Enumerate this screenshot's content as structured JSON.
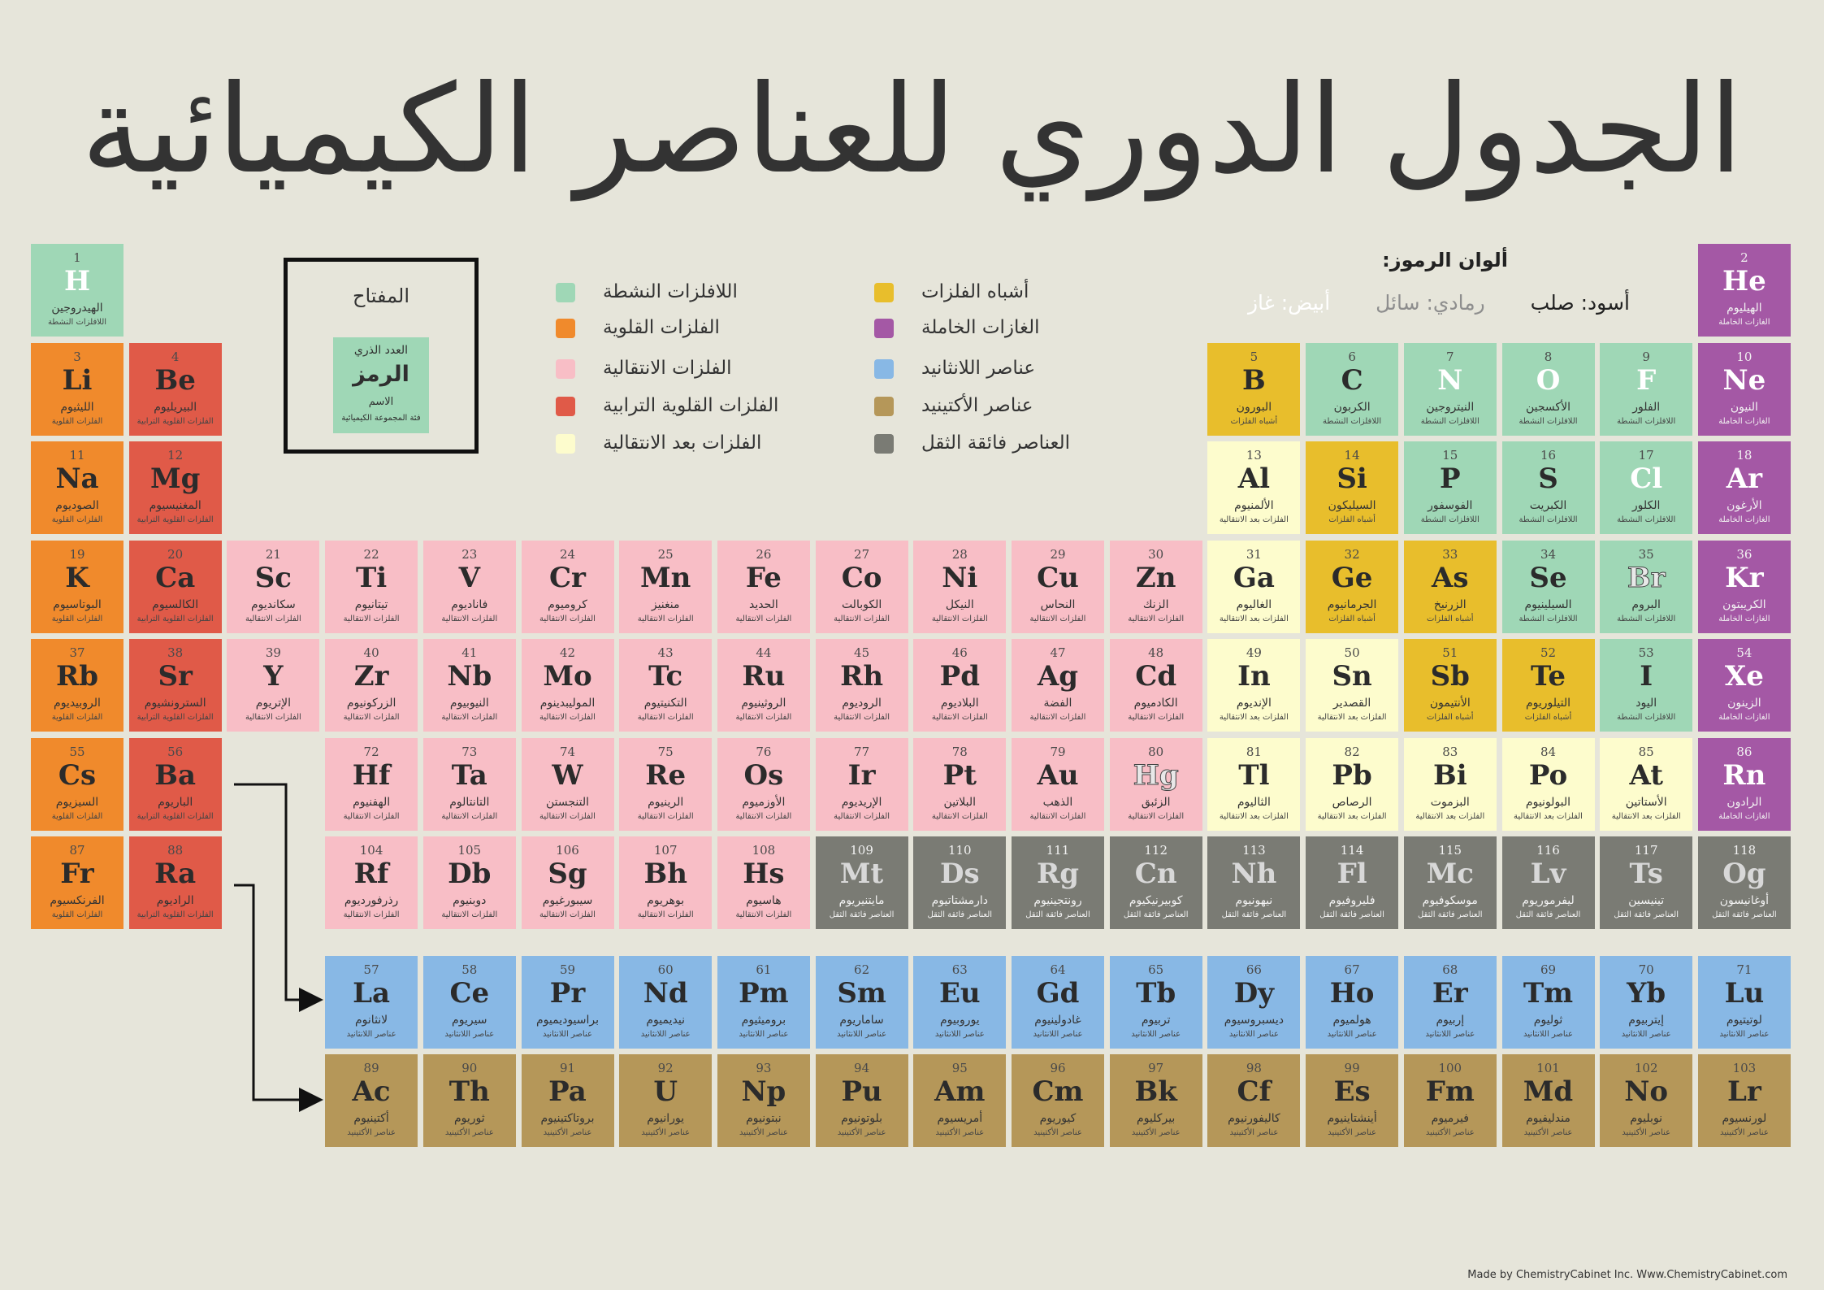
{
  "title": "الجدول الدوري للعناصر الكيميائية",
  "colors": {
    "nonmetal": "#9fd7b6",
    "alkali": "#f08a2c",
    "transition": "#f8bec6",
    "alkaline": "#e05a48",
    "post": "#fdfccd",
    "metalloid": "#e8be2c",
    "noble": "#a458a5",
    "lanthanide": "#88b8e5",
    "actinide": "#b59759",
    "super": "#7a7b74"
  },
  "category_labels": {
    "nonmetal": "اللافلزات النشطة",
    "alkali": "الفلزات القلوية",
    "transition": "الفلزات الانتقالية",
    "alkaline": "الفلزات القلوية الترابية",
    "post": "الفلزات بعد الانتقالية",
    "metalloid": "أشباه الفلزات",
    "noble": "الغازات الخاملة",
    "lanthanide": "عناصر اللانثانيد",
    "actinide": "عناصر الأكتينيد",
    "super": "العناصر فائقة الثقل"
  },
  "legend": [
    {
      "key": "nonmetal",
      "label": "اللافلزات النشطة"
    },
    {
      "key": "alkali",
      "label": "الفلزات القلوية"
    },
    {
      "key": "transition",
      "label": "الفلزات الانتقالية"
    },
    {
      "key": "alkaline",
      "label": "الفلزات القلوية الترابية"
    },
    {
      "key": "post",
      "label": "الفلزات بعد الانتقالية"
    },
    {
      "key": "metalloid",
      "label": "أشباه الفلزات"
    },
    {
      "key": "noble",
      "label": "الغازات الخاملة"
    },
    {
      "key": "lanthanide",
      "label": "عناصر اللانثانيد"
    },
    {
      "key": "actinide",
      "label": "عناصر الأكتينيد"
    },
    {
      "key": "super",
      "label": "العناصر فائقة الثقل"
    }
  ],
  "key_box": {
    "title": "المفتاح",
    "number": "العدد الذري",
    "symbol": "الرمز",
    "name": "الاسم",
    "category": "فئة المجموعة الكيميائية"
  },
  "symbol_colors": {
    "title": "ألوان الرموز:",
    "solid": "أسود: صلب",
    "liquid": "رمادي: سائل",
    "gas": "أبيض: غاز"
  },
  "credit": "Made by ChemistryCabinet Inc. Www.ChemistryCabinet.com",
  "elements": [
    {
      "n": "1",
      "s": "H",
      "name": "الهيدروجين",
      "c": "nonmetal",
      "row": 1,
      "col": 1,
      "st": "gas"
    },
    {
      "n": "2",
      "s": "He",
      "name": "الهيليوم",
      "c": "noble",
      "row": 1,
      "col": 18,
      "st": "gas"
    },
    {
      "n": "3",
      "s": "Li",
      "name": "الليثيوم",
      "c": "alkali",
      "row": 2,
      "col": 1
    },
    {
      "n": "4",
      "s": "Be",
      "name": "البيريليوم",
      "c": "alkaline",
      "row": 2,
      "col": 2
    },
    {
      "n": "5",
      "s": "B",
      "name": "البورون",
      "c": "metalloid",
      "row": 2,
      "col": 13
    },
    {
      "n": "6",
      "s": "C",
      "name": "الكربون",
      "c": "nonmetal",
      "row": 2,
      "col": 14
    },
    {
      "n": "7",
      "s": "N",
      "name": "النيتروجين",
      "c": "nonmetal",
      "row": 2,
      "col": 15,
      "st": "gas"
    },
    {
      "n": "8",
      "s": "O",
      "name": "الأكسجين",
      "c": "nonmetal",
      "row": 2,
      "col": 16,
      "st": "gas"
    },
    {
      "n": "9",
      "s": "F",
      "name": "الفلور",
      "c": "nonmetal",
      "row": 2,
      "col": 17,
      "st": "gas"
    },
    {
      "n": "10",
      "s": "Ne",
      "name": "النيون",
      "c": "noble",
      "row": 2,
      "col": 18,
      "st": "gas"
    },
    {
      "n": "11",
      "s": "Na",
      "name": "الصوديوم",
      "c": "alkali",
      "row": 3,
      "col": 1
    },
    {
      "n": "12",
      "s": "Mg",
      "name": "المغنيسيوم",
      "c": "alkaline",
      "row": 3,
      "col": 2
    },
    {
      "n": "13",
      "s": "Al",
      "name": "الألمنيوم",
      "c": "post",
      "row": 3,
      "col": 13
    },
    {
      "n": "14",
      "s": "Si",
      "name": "السيليكون",
      "c": "metalloid",
      "row": 3,
      "col": 14
    },
    {
      "n": "15",
      "s": "P",
      "name": "الفوسفور",
      "c": "nonmetal",
      "row": 3,
      "col": 15
    },
    {
      "n": "16",
      "s": "S",
      "name": "الكبريت",
      "c": "nonmetal",
      "row": 3,
      "col": 16
    },
    {
      "n": "17",
      "s": "Cl",
      "name": "الكلور",
      "c": "nonmetal",
      "row": 3,
      "col": 17,
      "st": "gas"
    },
    {
      "n": "18",
      "s": "Ar",
      "name": "الأرغون",
      "c": "noble",
      "row": 3,
      "col": 18,
      "st": "gas"
    },
    {
      "n": "19",
      "s": "K",
      "name": "البوتاسيوم",
      "c": "alkali",
      "row": 4,
      "col": 1
    },
    {
      "n": "20",
      "s": "Ca",
      "name": "الكالسيوم",
      "c": "alkaline",
      "row": 4,
      "col": 2
    },
    {
      "n": "21",
      "s": "Sc",
      "name": "سكانديوم",
      "c": "transition",
      "row": 4,
      "col": 3
    },
    {
      "n": "22",
      "s": "Ti",
      "name": "تيتانيوم",
      "c": "transition",
      "row": 4,
      "col": 4
    },
    {
      "n": "23",
      "s": "V",
      "name": "فاناديوم",
      "c": "transition",
      "row": 4,
      "col": 5
    },
    {
      "n": "24",
      "s": "Cr",
      "name": "كروميوم",
      "c": "transition",
      "row": 4,
      "col": 6
    },
    {
      "n": "25",
      "s": "Mn",
      "name": "منغنيز",
      "c": "transition",
      "row": 4,
      "col": 7
    },
    {
      "n": "26",
      "s": "Fe",
      "name": "الحديد",
      "c": "transition",
      "row": 4,
      "col": 8
    },
    {
      "n": "27",
      "s": "Co",
      "name": "الكوبالت",
      "c": "transition",
      "row": 4,
      "col": 9
    },
    {
      "n": "28",
      "s": "Ni",
      "name": "النيكل",
      "c": "transition",
      "row": 4,
      "col": 10
    },
    {
      "n": "29",
      "s": "Cu",
      "name": "النحاس",
      "c": "transition",
      "row": 4,
      "col": 11
    },
    {
      "n": "30",
      "s": "Zn",
      "name": "الزنك",
      "c": "transition",
      "row": 4,
      "col": 12
    },
    {
      "n": "31",
      "s": "Ga",
      "name": "الغاليوم",
      "c": "post",
      "row": 4,
      "col": 13
    },
    {
      "n": "32",
      "s": "Ge",
      "name": "الجرمانيوم",
      "c": "metalloid",
      "row": 4,
      "col": 14
    },
    {
      "n": "33",
      "s": "As",
      "name": "الزرنيخ",
      "c": "metalloid",
      "row": 4,
      "col": 15
    },
    {
      "n": "34",
      "s": "Se",
      "name": "السيلينيوم",
      "c": "nonmetal",
      "row": 4,
      "col": 16
    },
    {
      "n": "35",
      "s": "Br",
      "name": "البروم",
      "c": "nonmetal",
      "row": 4,
      "col": 17,
      "st": "liquid"
    },
    {
      "n": "36",
      "s": "Kr",
      "name": "الكريبتون",
      "c": "noble",
      "row": 4,
      "col": 18,
      "st": "gas"
    },
    {
      "n": "37",
      "s": "Rb",
      "name": "الروبيديوم",
      "c": "alkali",
      "row": 5,
      "col": 1
    },
    {
      "n": "38",
      "s": "Sr",
      "name": "السترونشيوم",
      "c": "alkaline",
      "row": 5,
      "col": 2
    },
    {
      "n": "39",
      "s": "Y",
      "name": "الإتريوم",
      "c": "transition",
      "row": 5,
      "col": 3
    },
    {
      "n": "40",
      "s": "Zr",
      "name": "الزركونيوم",
      "c": "transition",
      "row": 5,
      "col": 4
    },
    {
      "n": "41",
      "s": "Nb",
      "name": "النيوبيوم",
      "c": "transition",
      "row": 5,
      "col": 5
    },
    {
      "n": "42",
      "s": "Mo",
      "name": "الموليبدينوم",
      "c": "transition",
      "row": 5,
      "col": 6
    },
    {
      "n": "43",
      "s": "Tc",
      "name": "التكنيتيوم",
      "c": "transition",
      "row": 5,
      "col": 7
    },
    {
      "n": "44",
      "s": "Ru",
      "name": "الروثينيوم",
      "c": "transition",
      "row": 5,
      "col": 8
    },
    {
      "n": "45",
      "s": "Rh",
      "name": "الروديوم",
      "c": "transition",
      "row": 5,
      "col": 9
    },
    {
      "n": "46",
      "s": "Pd",
      "name": "البلاديوم",
      "c": "transition",
      "row": 5,
      "col": 10
    },
    {
      "n": "47",
      "s": "Ag",
      "name": "الفضة",
      "c": "transition",
      "row": 5,
      "col": 11
    },
    {
      "n": "48",
      "s": "Cd",
      "name": "الكادميوم",
      "c": "transition",
      "row": 5,
      "col": 12
    },
    {
      "n": "49",
      "s": "In",
      "name": "الإنديوم",
      "c": "post",
      "row": 5,
      "col": 13
    },
    {
      "n": "50",
      "s": "Sn",
      "name": "القصدير",
      "c": "post",
      "row": 5,
      "col": 14
    },
    {
      "n": "51",
      "s": "Sb",
      "name": "الأنتيمون",
      "c": "metalloid",
      "row": 5,
      "col": 15
    },
    {
      "n": "52",
      "s": "Te",
      "name": "التيلوريوم",
      "c": "metalloid",
      "row": 5,
      "col": 16
    },
    {
      "n": "53",
      "s": "I",
      "name": "اليود",
      "c": "nonmetal",
      "row": 5,
      "col": 17
    },
    {
      "n": "54",
      "s": "Xe",
      "name": "الزينون",
      "c": "noble",
      "row": 5,
      "col": 18,
      "st": "gas"
    },
    {
      "n": "55",
      "s": "Cs",
      "name": "السيزيوم",
      "c": "alkali",
      "row": 6,
      "col": 1
    },
    {
      "n": "56",
      "s": "Ba",
      "name": "الباريوم",
      "c": "alkaline",
      "row": 6,
      "col": 2
    },
    {
      "n": "72",
      "s": "Hf",
      "name": "الهفنيوم",
      "c": "transition",
      "row": 6,
      "col": 4
    },
    {
      "n": "73",
      "s": "Ta",
      "name": "التانتالوم",
      "c": "transition",
      "row": 6,
      "col": 5
    },
    {
      "n": "74",
      "s": "W",
      "name": "التنجستن",
      "c": "transition",
      "row": 6,
      "col": 6
    },
    {
      "n": "75",
      "s": "Re",
      "name": "الرينيوم",
      "c": "transition",
      "row": 6,
      "col": 7
    },
    {
      "n": "76",
      "s": "Os",
      "name": "الأوزميوم",
      "c": "transition",
      "row": 6,
      "col": 8
    },
    {
      "n": "77",
      "s": "Ir",
      "name": "الإريديوم",
      "c": "transition",
      "row": 6,
      "col": 9
    },
    {
      "n": "78",
      "s": "Pt",
      "name": "البلاتين",
      "c": "transition",
      "row": 6,
      "col": 10
    },
    {
      "n": "79",
      "s": "Au",
      "name": "الذهب",
      "c": "transition",
      "row": 6,
      "col": 11
    },
    {
      "n": "80",
      "s": "Hg",
      "name": "الزئبق",
      "c": "transition",
      "row": 6,
      "col": 12,
      "st": "liquid"
    },
    {
      "n": "81",
      "s": "Tl",
      "name": "الثاليوم",
      "c": "post",
      "row": 6,
      "col": 13
    },
    {
      "n": "82",
      "s": "Pb",
      "name": "الرصاص",
      "c": "post",
      "row": 6,
      "col": 14
    },
    {
      "n": "83",
      "s": "Bi",
      "name": "البزموت",
      "c": "post",
      "row": 6,
      "col": 15
    },
    {
      "n": "84",
      "s": "Po",
      "name": "البولونيوم",
      "c": "post",
      "row": 6,
      "col": 16
    },
    {
      "n": "85",
      "s": "At",
      "name": "الأستاتين",
      "c": "post",
      "row": 6,
      "col": 17
    },
    {
      "n": "86",
      "s": "Rn",
      "name": "الرادون",
      "c": "noble",
      "row": 6,
      "col": 18,
      "st": "gas"
    },
    {
      "n": "87",
      "s": "Fr",
      "name": "الفرنكسيوم",
      "c": "alkali",
      "row": 7,
      "col": 1
    },
    {
      "n": "88",
      "s": "Ra",
      "name": "الراديوم",
      "c": "alkaline",
      "row": 7,
      "col": 2
    },
    {
      "n": "104",
      "s": "Rf",
      "name": "رذرفورديوم",
      "c": "transition",
      "row": 7,
      "col": 4
    },
    {
      "n": "105",
      "s": "Db",
      "name": "دوبنيوم",
      "c": "transition",
      "row": 7,
      "col": 5
    },
    {
      "n": "106",
      "s": "Sg",
      "name": "سيبورغيوم",
      "c": "transition",
      "row": 7,
      "col": 6
    },
    {
      "n": "107",
      "s": "Bh",
      "name": "بوهريوم",
      "c": "transition",
      "row": 7,
      "col": 7
    },
    {
      "n": "108",
      "s": "Hs",
      "name": "هاسيوم",
      "c": "transition",
      "row": 7,
      "col": 8
    },
    {
      "n": "109",
      "s": "Mt",
      "name": "مايتنيريوم",
      "c": "super",
      "row": 7,
      "col": 9
    },
    {
      "n": "110",
      "s": "Ds",
      "name": "دارمشتاتيوم",
      "c": "super",
      "row": 7,
      "col": 10
    },
    {
      "n": "111",
      "s": "Rg",
      "name": "رونتجينيوم",
      "c": "super",
      "row": 7,
      "col": 11
    },
    {
      "n": "112",
      "s": "Cn",
      "name": "كوبيرنيكيوم",
      "c": "super",
      "row": 7,
      "col": 12
    },
    {
      "n": "113",
      "s": "Nh",
      "name": "نيهونيوم",
      "c": "super",
      "row": 7,
      "col": 13
    },
    {
      "n": "114",
      "s": "Fl",
      "name": "فليروفيوم",
      "c": "super",
      "row": 7,
      "col": 14
    },
    {
      "n": "115",
      "s": "Mc",
      "name": "موسكوفيوم",
      "c": "super",
      "row": 7,
      "col": 15
    },
    {
      "n": "116",
      "s": "Lv",
      "name": "ليفرموريوم",
      "c": "super",
      "row": 7,
      "col": 16
    },
    {
      "n": "117",
      "s": "Ts",
      "name": "تينيسين",
      "c": "super",
      "row": 7,
      "col": 17
    },
    {
      "n": "118",
      "s": "Og",
      "name": "أوغانيسون",
      "c": "super",
      "row": 7,
      "col": 18
    },
    {
      "n": "57",
      "s": "La",
      "name": "لانثانوم",
      "c": "lanthanide",
      "row": 8,
      "col": 4
    },
    {
      "n": "58",
      "s": "Ce",
      "name": "سيريوم",
      "c": "lanthanide",
      "row": 8,
      "col": 5
    },
    {
      "n": "59",
      "s": "Pr",
      "name": "براسيوديميوم",
      "c": "lanthanide",
      "row": 8,
      "col": 6
    },
    {
      "n": "60",
      "s": "Nd",
      "name": "نيديميوم",
      "c": "lanthanide",
      "row": 8,
      "col": 7
    },
    {
      "n": "61",
      "s": "Pm",
      "name": "بروميثيوم",
      "c": "lanthanide",
      "row": 8,
      "col": 8
    },
    {
      "n": "62",
      "s": "Sm",
      "name": "ساماريوم",
      "c": "lanthanide",
      "row": 8,
      "col": 9
    },
    {
      "n": "63",
      "s": "Eu",
      "name": "يوروبيوم",
      "c": "lanthanide",
      "row": 8,
      "col": 10
    },
    {
      "n": "64",
      "s": "Gd",
      "name": "غادولينيوم",
      "c": "lanthanide",
      "row": 8,
      "col": 11
    },
    {
      "n": "65",
      "s": "Tb",
      "name": "تربيوم",
      "c": "lanthanide",
      "row": 8,
      "col": 12
    },
    {
      "n": "66",
      "s": "Dy",
      "name": "ديسبروسيوم",
      "c": "lanthanide",
      "row": 8,
      "col": 13
    },
    {
      "n": "67",
      "s": "Ho",
      "name": "هولميوم",
      "c": "lanthanide",
      "row": 8,
      "col": 14
    },
    {
      "n": "68",
      "s": "Er",
      "name": "إربيوم",
      "c": "lanthanide",
      "row": 8,
      "col": 15
    },
    {
      "n": "69",
      "s": "Tm",
      "name": "ثوليوم",
      "c": "lanthanide",
      "row": 8,
      "col": 16
    },
    {
      "n": "70",
      "s": "Yb",
      "name": "إيتربيوم",
      "c": "lanthanide",
      "row": 8,
      "col": 17
    },
    {
      "n": "71",
      "s": "Lu",
      "name": "لوتيتيوم",
      "c": "lanthanide",
      "row": 8,
      "col": 18
    },
    {
      "n": "89",
      "s": "Ac",
      "name": "أكتينيوم",
      "c": "actinide",
      "row": 9,
      "col": 4
    },
    {
      "n": "90",
      "s": "Th",
      "name": "ثوريوم",
      "c": "actinide",
      "row": 9,
      "col": 5
    },
    {
      "n": "91",
      "s": "Pa",
      "name": "بروتاكتينيوم",
      "c": "actinide",
      "row": 9,
      "col": 6
    },
    {
      "n": "92",
      "s": "U",
      "name": "يورانيوم",
      "c": "actinide",
      "row": 9,
      "col": 7
    },
    {
      "n": "93",
      "s": "Np",
      "name": "نبتونيوم",
      "c": "actinide",
      "row": 9,
      "col": 8
    },
    {
      "n": "94",
      "s": "Pu",
      "name": "بلوتونيوم",
      "c": "actinide",
      "row": 9,
      "col": 9
    },
    {
      "n": "95",
      "s": "Am",
      "name": "أمريسيوم",
      "c": "actinide",
      "row": 9,
      "col": 10
    },
    {
      "n": "96",
      "s": "Cm",
      "name": "كيوريوم",
      "c": "actinide",
      "row": 9,
      "col": 11
    },
    {
      "n": "97",
      "s": "Bk",
      "name": "بيركليوم",
      "c": "actinide",
      "row": 9,
      "col": 12
    },
    {
      "n": "98",
      "s": "Cf",
      "name": "كاليفورنيوم",
      "c": "actinide",
      "row": 9,
      "col": 13
    },
    {
      "n": "99",
      "s": "Es",
      "name": "أينشتاينيوم",
      "c": "actinide",
      "row": 9,
      "col": 14
    },
    {
      "n": "100",
      "s": "Fm",
      "name": "فيرميوم",
      "c": "actinide",
      "row": 9,
      "col": 15
    },
    {
      "n": "101",
      "s": "Md",
      "name": "مندليفيوم",
      "c": "actinide",
      "row": 9,
      "col": 16
    },
    {
      "n": "102",
      "s": "No",
      "name": "نوبليوم",
      "c": "actinide",
      "row": 9,
      "col": 17
    },
    {
      "n": "103",
      "s": "Lr",
      "name": "لورنسيوم",
      "c": "actinide",
      "row": 9,
      "col": 18
    }
  ]
}
